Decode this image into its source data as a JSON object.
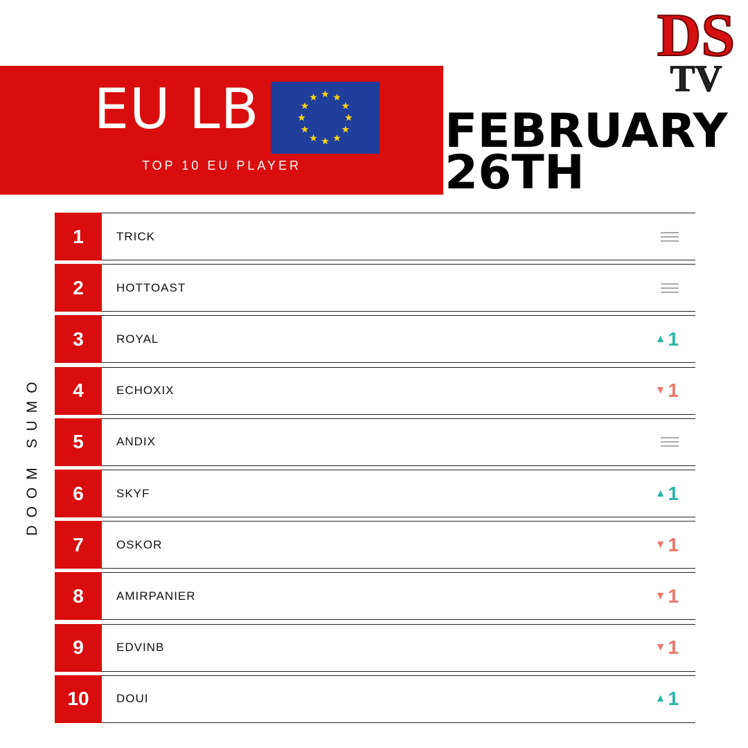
{
  "header": {
    "title": "EU LB",
    "subtitle": "TOP 10 EU PLAYER",
    "date": [
      "FEBRUARY",
      "26TH"
    ],
    "logo": {
      "top": "DS",
      "bottom": "TV"
    }
  },
  "side_label": "DOOM SUMO",
  "rows": [
    {
      "rank": 1,
      "name": "TRICK",
      "trend": "same"
    },
    {
      "rank": 2,
      "name": "HOTTOAST",
      "trend": "same"
    },
    {
      "rank": 3,
      "name": "ROYAL",
      "trend": "up",
      "change": 1
    },
    {
      "rank": 4,
      "name": "ECHOXIX",
      "trend": "down",
      "change": 1
    },
    {
      "rank": 5,
      "name": "ANDIX",
      "trend": "same"
    },
    {
      "rank": 6,
      "name": "SKYF",
      "trend": "up",
      "change": 1
    },
    {
      "rank": 7,
      "name": "OSKOR",
      "trend": "down",
      "change": 1
    },
    {
      "rank": 8,
      "name": "AMIRPANIER",
      "trend": "down",
      "change": 1
    },
    {
      "rank": 9,
      "name": "EDVINB",
      "trend": "down",
      "change": 1
    },
    {
      "rank": 10,
      "name": "DOUI",
      "trend": "up",
      "change": 1
    }
  ]
}
